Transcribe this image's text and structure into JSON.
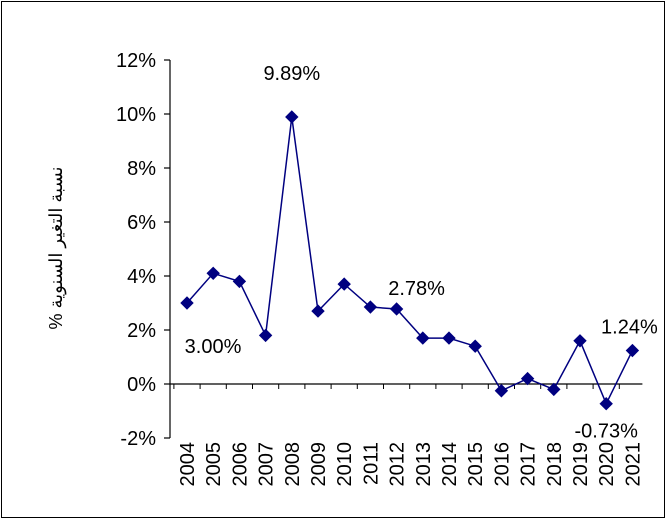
{
  "chart_data": {
    "type": "line",
    "title": "",
    "xlabel": "",
    "ylabel": "% نسبة التغير السنوية",
    "x": [
      "2004",
      "2005",
      "2006",
      "2007",
      "2008",
      "2009",
      "2010",
      "2011",
      "2012",
      "2013",
      "2014",
      "2015",
      "2016",
      "2017",
      "2018",
      "2019",
      "2020",
      "2021"
    ],
    "series": [
      {
        "values": [
          3.0,
          4.1,
          3.8,
          1.8,
          9.89,
          2.7,
          3.7,
          2.85,
          2.78,
          1.7,
          1.7,
          1.4,
          -0.25,
          0.2,
          -0.2,
          1.6,
          -0.73,
          1.24
        ]
      }
    ],
    "ylim": [
      -2,
      12
    ],
    "yticks": [
      -2,
      0,
      2,
      4,
      6,
      8,
      10,
      12
    ],
    "ytick_labels": [
      "-2%",
      "0%",
      "2%",
      "4%",
      "6%",
      "8%",
      "10%",
      "12%"
    ],
    "data_labels": [
      {
        "year": "2004",
        "text": "3.00%"
      },
      {
        "year": "2008",
        "text": "9.89%"
      },
      {
        "year": "2012",
        "text": "2.78%"
      },
      {
        "year": "2020",
        "text": "-0.73%"
      },
      {
        "year": "2021",
        "text": "1.24%"
      }
    ],
    "grid": false,
    "legend": "none",
    "colors": {
      "line": "#000080",
      "marker": "#000080",
      "axis": "#000000"
    }
  }
}
